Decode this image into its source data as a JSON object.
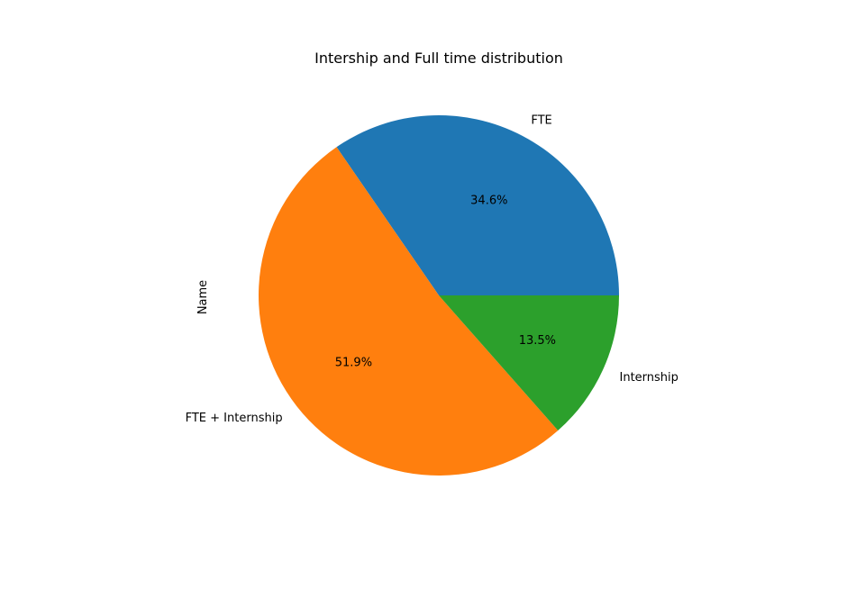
{
  "chart_data": {
    "type": "pie",
    "title": "Intership and Full time distribution",
    "ylabel": "Name",
    "xlabel": "",
    "slices": [
      {
        "label": "FTE",
        "value": 34.6,
        "pct_label": "34.6%",
        "color": "#1f77b4"
      },
      {
        "label": "FTE + Internship",
        "value": 51.9,
        "pct_label": "51.9%",
        "color": "#ff7f0e"
      },
      {
        "label": "Internship",
        "value": 13.5,
        "pct_label": "13.5%",
        "color": "#2ca02c"
      }
    ],
    "start_angle_deg": 0,
    "direction": "counterclockwise",
    "legend": "none"
  }
}
